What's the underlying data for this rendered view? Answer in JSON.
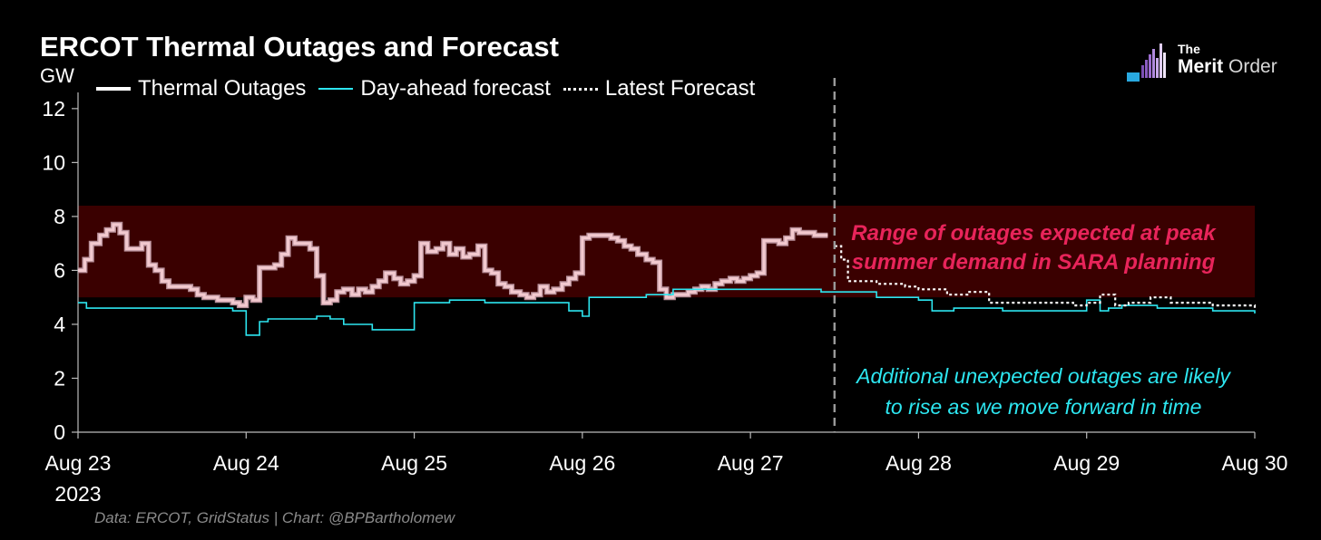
{
  "title": "ERCOT Thermal Outages and Forecast",
  "unit": "GW",
  "legend": [
    {
      "label": "Thermal Outages",
      "color": "#ffffff",
      "style": "solid-thick"
    },
    {
      "label": "Day-ahead forecast",
      "color": "#2de6f0",
      "style": "solid"
    },
    {
      "label": "Latest Forecast",
      "color": "#ffffff",
      "style": "dotted"
    }
  ],
  "annotations": {
    "red_line1": "Range of outages expected at peak",
    "red_line2": "summer demand in SARA planning",
    "cyan_line1": "Additional unexpected outages are likely",
    "cyan_line2": "to rise as we move forward in time"
  },
  "source": "Data: ERCOT, GridStatus | Chart: @BPBartholomew",
  "logo": {
    "the": "The",
    "merit": "Merit",
    "order": "Order"
  },
  "colors": {
    "background": "#000000",
    "band": "#3a0000",
    "outages": "#f2c9cf",
    "dayahead": "#2de6f0",
    "latest": "#ffffff",
    "red_note": "#e8245a"
  },
  "chart_data": {
    "type": "line",
    "title": "ERCOT Thermal Outages and Forecast",
    "ylabel": "GW",
    "xlabel": "",
    "ylim": [
      0,
      12.6
    ],
    "xlim": [
      0,
      7
    ],
    "yticks": [
      0,
      2,
      4,
      6,
      8,
      10,
      12
    ],
    "xticks": [
      {
        "pos": 0,
        "label": "Aug 23",
        "sub": "2023"
      },
      {
        "pos": 1,
        "label": "Aug 24"
      },
      {
        "pos": 2,
        "label": "Aug 25"
      },
      {
        "pos": 3,
        "label": "Aug 26"
      },
      {
        "pos": 4,
        "label": "Aug 27"
      },
      {
        "pos": 5,
        "label": "Aug 28"
      },
      {
        "pos": 6,
        "label": "Aug 29"
      },
      {
        "pos": 7,
        "label": "Aug 30"
      }
    ],
    "x_unit": "days since Aug 23 2023 00:00",
    "grid": false,
    "legend_position": "top-left",
    "shaded_band": {
      "y0": 5.0,
      "y1": 8.4,
      "x0": 0,
      "x1": 7
    },
    "now_line_x": 4.5,
    "series": [
      {
        "name": "Thermal Outages",
        "style": "step",
        "x": [
          0.0,
          0.04,
          0.08,
          0.13,
          0.17,
          0.21,
          0.25,
          0.29,
          0.33,
          0.38,
          0.42,
          0.46,
          0.5,
          0.54,
          0.58,
          0.63,
          0.67,
          0.71,
          0.75,
          0.79,
          0.83,
          0.88,
          0.92,
          0.96,
          1.0,
          1.04,
          1.08,
          1.13,
          1.17,
          1.21,
          1.25,
          1.29,
          1.33,
          1.38,
          1.42,
          1.46,
          1.5,
          1.54,
          1.58,
          1.63,
          1.67,
          1.71,
          1.75,
          1.79,
          1.83,
          1.88,
          1.92,
          1.96,
          2.0,
          2.04,
          2.08,
          2.13,
          2.17,
          2.21,
          2.25,
          2.29,
          2.33,
          2.38,
          2.42,
          2.46,
          2.5,
          2.54,
          2.58,
          2.63,
          2.67,
          2.71,
          2.75,
          2.79,
          2.83,
          2.88,
          2.92,
          2.96,
          3.0,
          3.04,
          3.08,
          3.13,
          3.17,
          3.21,
          3.25,
          3.29,
          3.33,
          3.38,
          3.42,
          3.46,
          3.5,
          3.54,
          3.58,
          3.63,
          3.67,
          3.71,
          3.75,
          3.79,
          3.83,
          3.88,
          3.92,
          3.96,
          4.0,
          4.04,
          4.08,
          4.13,
          4.17,
          4.21,
          4.25,
          4.29,
          4.33,
          4.38,
          4.42,
          4.46
        ],
        "y": [
          6.0,
          6.4,
          7.0,
          7.3,
          7.5,
          7.7,
          7.4,
          6.8,
          6.8,
          7.0,
          6.2,
          6.0,
          5.6,
          5.4,
          5.4,
          5.4,
          5.3,
          5.1,
          5.0,
          5.0,
          4.9,
          4.9,
          4.8,
          4.7,
          5.0,
          4.9,
          6.1,
          6.1,
          6.2,
          6.6,
          7.2,
          7.0,
          7.0,
          6.8,
          5.8,
          4.8,
          4.9,
          5.2,
          5.3,
          5.1,
          5.3,
          5.2,
          5.4,
          5.6,
          5.9,
          5.7,
          5.5,
          5.6,
          5.8,
          7.0,
          6.7,
          6.8,
          7.0,
          6.6,
          6.8,
          6.5,
          6.6,
          6.9,
          6.0,
          5.9,
          5.5,
          5.4,
          5.2,
          5.1,
          5.0,
          5.1,
          5.4,
          5.2,
          5.3,
          5.5,
          5.7,
          5.9,
          7.2,
          7.3,
          7.3,
          7.3,
          7.2,
          7.1,
          6.9,
          6.8,
          6.6,
          6.4,
          6.3,
          5.3,
          5.0,
          5.1,
          5.1,
          5.2,
          5.3,
          5.4,
          5.3,
          5.5,
          5.6,
          5.7,
          5.6,
          5.7,
          5.8,
          5.9,
          7.1,
          7.1,
          7.0,
          7.2,
          7.5,
          7.4,
          7.4,
          7.3,
          7.3,
          7.3
        ]
      },
      {
        "name": "Day-ahead forecast",
        "style": "step",
        "x": [
          0.0,
          0.05,
          0.21,
          0.38,
          0.5,
          0.92,
          1.0,
          1.08,
          1.13,
          1.42,
          1.5,
          1.58,
          1.75,
          1.79,
          1.88,
          2.0,
          2.21,
          2.42,
          2.54,
          2.92,
          3.0,
          3.04,
          3.38,
          3.54,
          3.58,
          4.08,
          4.21,
          4.42,
          4.75,
          5.0,
          5.08,
          5.21,
          5.42,
          5.5,
          6.0,
          6.08,
          6.13,
          6.21,
          6.42,
          6.5,
          6.75,
          6.83,
          7.0
        ],
        "y": [
          4.8,
          4.6,
          4.6,
          4.6,
          4.6,
          4.5,
          3.6,
          4.1,
          4.2,
          4.3,
          4.2,
          4.0,
          3.8,
          3.8,
          3.8,
          4.8,
          4.9,
          4.8,
          4.8,
          4.5,
          4.3,
          5.0,
          5.1,
          5.3,
          5.3,
          5.3,
          5.3,
          5.2,
          5.0,
          4.9,
          4.5,
          4.6,
          4.6,
          4.5,
          4.9,
          4.5,
          4.6,
          4.7,
          4.6,
          4.6,
          4.5,
          4.5,
          4.4
        ]
      },
      {
        "name": "Latest Forecast",
        "style": "step-dotted",
        "x": [
          4.5,
          4.54,
          4.58,
          4.75,
          4.92,
          5.0,
          5.17,
          5.29,
          5.42,
          5.67,
          5.92,
          6.0,
          6.08,
          6.17,
          6.25,
          6.38,
          6.5,
          6.63,
          6.75,
          7.0
        ],
        "y": [
          6.9,
          6.4,
          5.6,
          5.5,
          5.4,
          5.3,
          5.1,
          5.2,
          4.8,
          4.8,
          4.7,
          4.8,
          5.1,
          4.7,
          4.8,
          5.0,
          4.8,
          4.8,
          4.7,
          4.6
        ]
      }
    ]
  }
}
